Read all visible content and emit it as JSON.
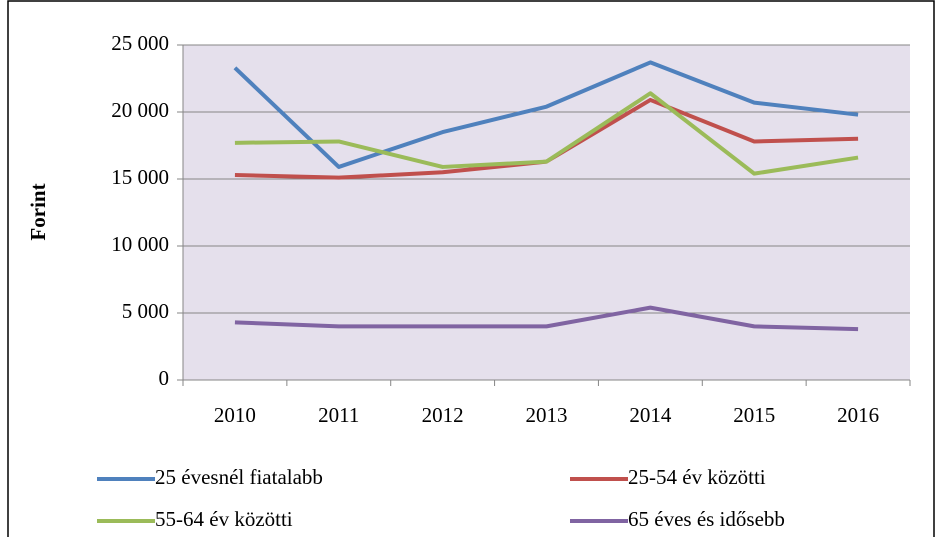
{
  "chart_data": {
    "type": "line",
    "y_label": "Forint",
    "categories": [
      "2010",
      "2011",
      "2012",
      "2013",
      "2014",
      "2015",
      "2016"
    ],
    "series": [
      {
        "name": "25 évesnél fiatalabb",
        "color": "#4f81bd",
        "values": [
          23300,
          15900,
          18500,
          20400,
          23700,
          20700,
          19800
        ]
      },
      {
        "name": "25-54 év közötti",
        "color": "#c0504d",
        "values": [
          15300,
          15100,
          15500,
          16300,
          20900,
          17800,
          18000
        ]
      },
      {
        "name": "55-64 év közötti",
        "color": "#9bbb59",
        "values": [
          17700,
          17800,
          15900,
          16300,
          21400,
          15400,
          16600
        ]
      },
      {
        "name": "65 éves és idősebb",
        "color": "#8064a2",
        "values": [
          4300,
          4000,
          4000,
          4000,
          5400,
          4000,
          3800
        ]
      }
    ],
    "ylim": [
      0,
      25000
    ],
    "yticks": [
      0,
      {
        "value": 5000,
        "label": "5 000"
      },
      {
        "value": 10000,
        "label": "10 000"
      },
      {
        "value": 15000,
        "label": "15 000"
      },
      {
        "value": 20000,
        "label": "20 000"
      },
      {
        "value": 25000,
        "label": "25 000"
      }
    ],
    "grid": true,
    "plot_background": "#e5e0ec"
  }
}
